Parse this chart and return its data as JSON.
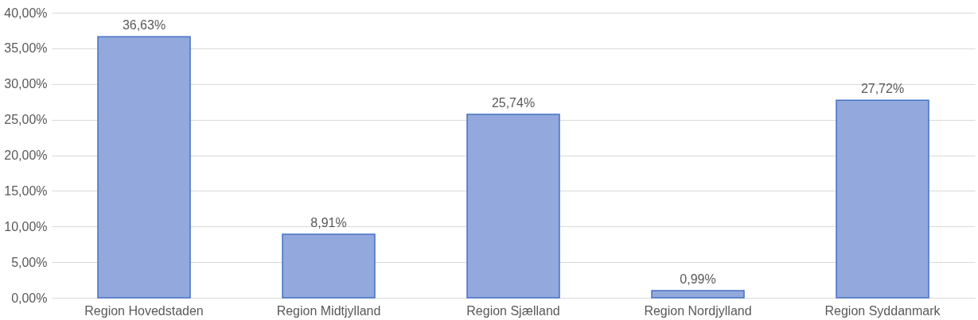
{
  "chart_data": {
    "type": "bar",
    "categories": [
      "Region Hovedstaden",
      "Region Midtjylland",
      "Region Sjælland",
      "Region Nordjylland",
      "Region Syddanmark"
    ],
    "values": [
      36.63,
      8.91,
      25.74,
      0.99,
      27.72
    ],
    "value_labels": [
      "36,63%",
      "8,91%",
      "25,74%",
      "0,99%",
      "27,72%"
    ],
    "color": "#93a8dd",
    "ylim": [
      0,
      40
    ],
    "yticks": [
      {
        "value": 0,
        "label": "0,00%"
      },
      {
        "value": 5,
        "label": "5,00%"
      },
      {
        "value": 10,
        "label": "10,00%"
      },
      {
        "value": 15,
        "label": "15,00%"
      },
      {
        "value": 20,
        "label": "20,00%"
      },
      {
        "value": 25,
        "label": "25,00%"
      },
      {
        "value": 30,
        "label": "30,00%"
      },
      {
        "value": 35,
        "label": "35,00%"
      },
      {
        "value": 40,
        "label": "40,00%"
      }
    ],
    "grid": "y"
  }
}
